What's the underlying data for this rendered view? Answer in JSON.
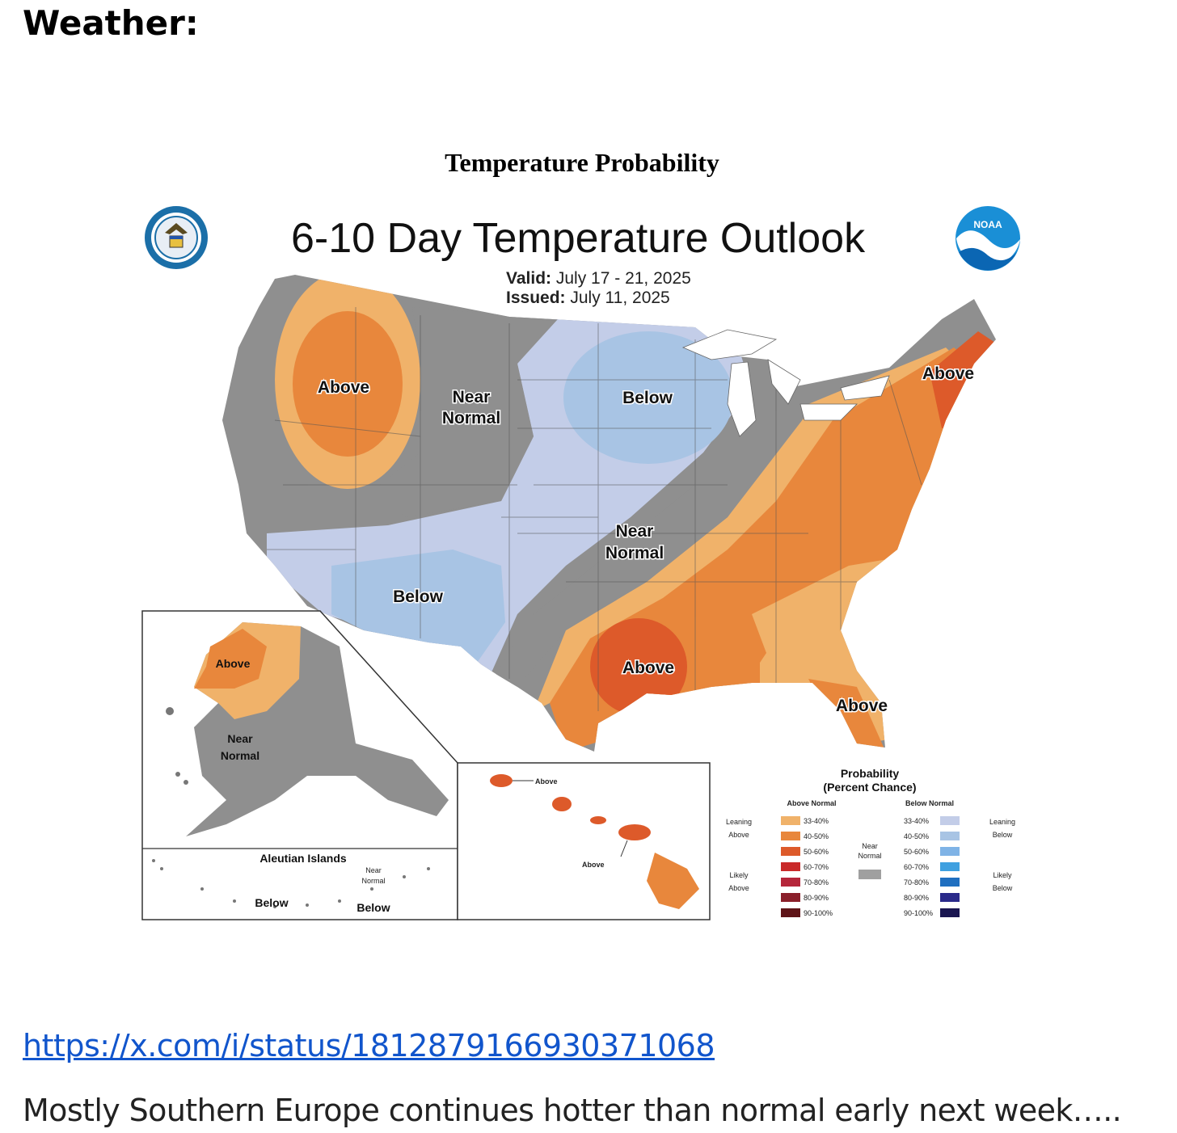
{
  "heading": "Weather:",
  "figure_title": "Temperature Probability",
  "map": {
    "title": "6-10 Day Temperature Outlook",
    "valid_label": "Valid:",
    "valid_value": "July 17 - 21, 2025",
    "issued_label": "Issued:",
    "issued_value": "July 11, 2025",
    "agency_logo_text": "NOAA",
    "regions": {
      "northwest": "Above",
      "northern_plains_1": "Near",
      "northern_plains_2": "Normal",
      "upper_midwest": "Below",
      "northeast": "Above",
      "central_1": "Near",
      "central_2": "Normal",
      "southwest": "Below",
      "gulf": "Above",
      "florida": "Above"
    },
    "alaska": {
      "west": "Above",
      "interior_1": "Near",
      "interior_2": "Normal",
      "aleutians_title": "Aleutian Islands",
      "aleutians_near_1": "Near",
      "aleutians_near_2": "Normal",
      "aleutians_below_1": "Below",
      "aleutians_below_2": "Below"
    },
    "hawaii": {
      "north": "Above",
      "south": "Above"
    },
    "legend": {
      "title_1": "Probability",
      "title_2": "(Percent Chance)",
      "above_header": "Above Normal",
      "below_header": "Below Normal",
      "leaning_above_1": "Leaning",
      "leaning_above_2": "Above",
      "likely_above_1": "Likely",
      "likely_above_2": "Above",
      "leaning_below_1": "Leaning",
      "leaning_below_2": "Below",
      "likely_below_1": "Likely",
      "likely_below_2": "Below",
      "near_1": "Near",
      "near_2": "Normal",
      "near_color": "#a0a0a0",
      "bins": [
        "33-40%",
        "40-50%",
        "50-60%",
        "60-70%",
        "70-80%",
        "80-90%",
        "90-100%"
      ],
      "above_colors": [
        "#f0b26a",
        "#e8873c",
        "#dd5a2a",
        "#c92a2a",
        "#b5263a",
        "#8a1f2a",
        "#5e1418"
      ],
      "below_colors": [
        "#c3cde8",
        "#a8c4e4",
        "#7fb3e6",
        "#3fa0e0",
        "#1f6fc0",
        "#2a2a8a",
        "#1a1650"
      ]
    }
  },
  "link": "https://x.com/i/status/1812879166930371068",
  "caption": "Mostly Southern Europe continues hotter than normal early next week….."
}
